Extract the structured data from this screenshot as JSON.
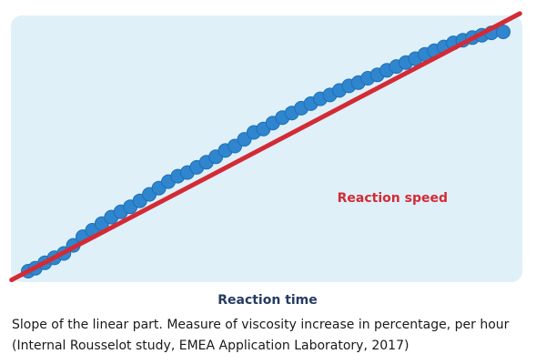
{
  "colors": {
    "panel": "#dff0f9",
    "dots": "#2f86cf",
    "dots_outline": "#1f6fb6",
    "line": "#d32b35",
    "xlabel": "#253b63",
    "line_label": "#d32b35"
  },
  "chart_data": {
    "type": "scatter",
    "xlabel": "Reaction time",
    "ylabel": "",
    "grid": false,
    "xlim": [
      0,
      100
    ],
    "ylim": [
      0,
      100
    ],
    "series": [
      {
        "name": "",
        "x": [
          0,
          1.5,
          3.5,
          5.5,
          7.5,
          9.5,
          11.5,
          13.5,
          15.5,
          17.5,
          19.5,
          21.5,
          23.5,
          25.5,
          27.5,
          29.5,
          31.5,
          33.5,
          35.5,
          37.5,
          39.5,
          41.5,
          43.5,
          45.5,
          47.5,
          49.5,
          51.5,
          53.5,
          55.5,
          57.5,
          59.5,
          61.5,
          63.5,
          65.5,
          67.5,
          69.5,
          71.5,
          73.5,
          75.5,
          77.5,
          79.5,
          81.5,
          83.5,
          85.5,
          87.5,
          89.5,
          91.5,
          93.5,
          95.5,
          97.5,
          100
        ],
        "y": [
          0,
          1.2,
          3.5,
          5.6,
          7.4,
          10.8,
          14.4,
          17.1,
          19.9,
          22.6,
          24.8,
          26.9,
          29.4,
          32.1,
          34.7,
          37.4,
          39.7,
          41.2,
          43.4,
          45.5,
          47.8,
          50.4,
          52.3,
          55.1,
          58.0,
          59.4,
          61.9,
          64.2,
          66.1,
          68.1,
          70.0,
          72.0,
          73.6,
          75.5,
          77.4,
          78.8,
          80.6,
          82.0,
          83.9,
          85.5,
          87.2,
          88.8,
          90.6,
          92.1,
          93.7,
          95.4,
          96.5,
          97.6,
          98.6,
          99.6,
          100
        ]
      },
      {
        "name": "Reaction speed",
        "type": "line",
        "x": [
          0,
          100
        ],
        "y": [
          0,
          104
        ]
      }
    ],
    "annotations": [
      "Reaction speed"
    ]
  },
  "captions": {
    "line1": "Slope of the linear part. Measure of viscosity increase in percentage, per hour",
    "line2": "(Internal Rousselot study, EMEA Application Laboratory, 2017)"
  }
}
